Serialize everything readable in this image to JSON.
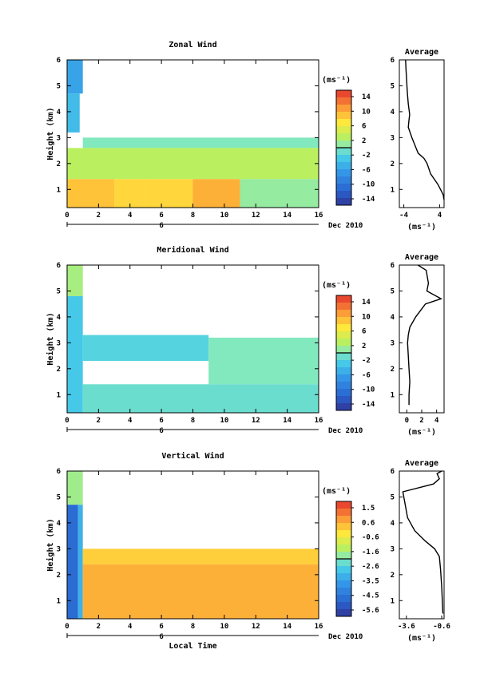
{
  "panels": [
    {
      "title": "Zonal Wind",
      "ylabel": "Height (km)",
      "xticks": [
        "0",
        "2",
        "4",
        "6",
        "8",
        "10",
        "12",
        "14",
        "16"
      ],
      "yticks": [
        "1",
        "2",
        "3",
        "4",
        "5",
        "6"
      ],
      "day_label": "6",
      "date_label": "Dec 2010",
      "colorbar_unit": "(ms⁻¹)",
      "colorbar_ticks": [
        "14",
        "10",
        "6",
        "2",
        "-2",
        "-6",
        "-10",
        "-14"
      ],
      "profile_title": "Average",
      "profile_xticks": [
        "-4",
        "4"
      ],
      "profile_yticks": [
        "1",
        "2",
        "3",
        "4",
        "5",
        "6"
      ],
      "profile_xlabel": "(ms⁻¹)",
      "xlabel": ""
    },
    {
      "title": "Meridional Wind",
      "ylabel": "Height (km)",
      "xticks": [
        "0",
        "2",
        "4",
        "6",
        "8",
        "10",
        "12",
        "14",
        "16"
      ],
      "yticks": [
        "1",
        "2",
        "3",
        "4",
        "5",
        "6"
      ],
      "day_label": "6",
      "date_label": "Dec 2010",
      "colorbar_unit": "(ms⁻¹)",
      "colorbar_ticks": [
        "14",
        "10",
        "6",
        "2",
        "-2",
        "-6",
        "-10",
        "-14"
      ],
      "profile_title": "Average",
      "profile_xticks": [
        "0",
        "2",
        "4"
      ],
      "profile_yticks": [
        "1",
        "2",
        "3",
        "4",
        "5",
        "6"
      ],
      "profile_xlabel": "(ms⁻¹)",
      "xlabel": ""
    },
    {
      "title": "Vertical Wind",
      "ylabel": "Height (km)",
      "xticks": [
        "0",
        "2",
        "4",
        "6",
        "8",
        "10",
        "12",
        "14",
        "16"
      ],
      "yticks": [
        "1",
        "2",
        "3",
        "4",
        "5",
        "6"
      ],
      "day_label": "6",
      "date_label": "Dec 2010",
      "colorbar_unit": "(ms⁻¹)",
      "colorbar_ticks": [
        "1.5",
        "0.6",
        "-0.6",
        "-1.6",
        "-2.6",
        "-3.5",
        "-4.5",
        "-5.6"
      ],
      "profile_title": "Average",
      "profile_xticks": [
        "-3.6",
        "-0.6"
      ],
      "profile_yticks": [
        "1",
        "2",
        "3",
        "4",
        "5",
        "6"
      ],
      "profile_xlabel": "(ms⁻¹)",
      "xlabel": "Local Time"
    }
  ],
  "chart_data": [
    {
      "type": "heatmap",
      "title": "Zonal Wind",
      "ylabel": "Height (km)",
      "xlim": [
        0,
        16
      ],
      "ylim": [
        0.3,
        6
      ],
      "clim": [
        -16,
        16
      ],
      "regions": [
        {
          "x": [
            0,
            1
          ],
          "y": [
            4.7,
            6
          ],
          "value": -6
        },
        {
          "x": [
            0,
            0.8
          ],
          "y": [
            3.2,
            4.7
          ],
          "value": -4
        },
        {
          "x": [
            1,
            16
          ],
          "y": [
            2.6,
            3.0
          ],
          "value": 0
        },
        {
          "x": [
            0,
            16
          ],
          "y": [
            1.4,
            2.6
          ],
          "value": 3
        },
        {
          "x": [
            0,
            3
          ],
          "y": [
            0.3,
            1.4
          ],
          "value": 9
        },
        {
          "x": [
            3,
            5
          ],
          "y": [
            0.3,
            1.4
          ],
          "value": 8
        },
        {
          "x": [
            5,
            8
          ],
          "y": [
            0.3,
            1.4
          ],
          "value": 8
        },
        {
          "x": [
            8,
            11
          ],
          "y": [
            0.3,
            1.4
          ],
          "value": 10
        },
        {
          "x": [
            11,
            16
          ],
          "y": [
            0.3,
            1.4
          ],
          "value": 1
        }
      ],
      "profile": {
        "title": "Average",
        "xlim": [
          -5,
          5
        ],
        "x": [
          -3.6,
          -3.5,
          -3.4,
          -3.3,
          -3.2,
          -3.0,
          -2.7,
          -2.9,
          -3.0,
          -2.2,
          -1.5,
          -0.8,
          0.5,
          1.2,
          2.0,
          3.6,
          4.8,
          5
        ],
        "y": [
          6.0,
          5.6,
          5.3,
          5.0,
          4.7,
          4.3,
          3.9,
          3.6,
          3.4,
          3.0,
          2.7,
          2.4,
          2.2,
          2.0,
          1.6,
          1.2,
          0.8,
          0.6
        ]
      }
    },
    {
      "type": "heatmap",
      "title": "Meridional Wind",
      "ylabel": "Height (km)",
      "xlim": [
        0,
        16
      ],
      "ylim": [
        0.3,
        6
      ],
      "clim": [
        -16,
        16
      ],
      "regions": [
        {
          "x": [
            0,
            1
          ],
          "y": [
            4.8,
            6
          ],
          "value": 2
        },
        {
          "x": [
            0,
            1
          ],
          "y": [
            0.3,
            4.8
          ],
          "value": -3
        },
        {
          "x": [
            1,
            9
          ],
          "y": [
            2.3,
            3.3
          ],
          "value": -2
        },
        {
          "x": [
            9,
            16
          ],
          "y": [
            1.4,
            3.2
          ],
          "value": 0
        },
        {
          "x": [
            1,
            16
          ],
          "y": [
            0.3,
            1.4
          ],
          "value": -1
        }
      ],
      "profile": {
        "title": "Average",
        "xlim": [
          -1,
          5
        ],
        "x": [
          0.3,
          0.3,
          0.4,
          0.3,
          0.2,
          0.1,
          0.2,
          0.4,
          1.2,
          2.5,
          4.6,
          2.7,
          2.9,
          2.6,
          1.5
        ],
        "y": [
          0.6,
          1.0,
          1.5,
          2.0,
          2.5,
          3.0,
          3.3,
          3.6,
          4.0,
          4.5,
          4.7,
          5.0,
          5.3,
          5.8,
          6.0
        ]
      }
    },
    {
      "type": "heatmap",
      "title": "Vertical Wind",
      "ylabel": "Height (km)",
      "xlabel": "Local Time",
      "xlim": [
        0,
        16
      ],
      "ylim": [
        0.3,
        6
      ],
      "clim": [
        -6,
        2
      ],
      "regions": [
        {
          "x": [
            0,
            1
          ],
          "y": [
            4.7,
            6
          ],
          "value": -1.6
        },
        {
          "x": [
            0,
            0.7
          ],
          "y": [
            0.3,
            4.7
          ],
          "value": -4.8
        },
        {
          "x": [
            0.7,
            1
          ],
          "y": [
            0.3,
            4.7
          ],
          "value": -3.2
        },
        {
          "x": [
            1,
            16
          ],
          "y": [
            2.4,
            3.0
          ],
          "value": 0.1
        },
        {
          "x": [
            1,
            16
          ],
          "y": [
            0.3,
            2.4
          ],
          "value": 0.5
        }
      ],
      "profile": {
        "title": "Average",
        "xlim": [
          -4.2,
          -0.4
        ],
        "x": [
          -0.5,
          -0.6,
          -0.7,
          -0.8,
          -1.2,
          -2.0,
          -2.9,
          -3.5,
          -3.9,
          -1.3,
          -0.8,
          -1.0,
          -0.6
        ],
        "y": [
          0.5,
          1.5,
          2.2,
          2.7,
          3.0,
          3.3,
          3.7,
          4.2,
          5.2,
          5.5,
          5.7,
          5.9,
          6.0
        ]
      }
    }
  ]
}
